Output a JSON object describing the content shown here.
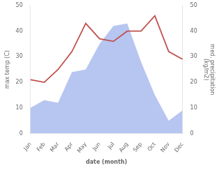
{
  "chart_data": {
    "type": "line",
    "categories": [
      "Jan",
      "Feb",
      "Mar",
      "Apr",
      "May",
      "Jun",
      "Jul",
      "Aug",
      "Sep",
      "Oct",
      "Nov",
      "Dec"
    ],
    "series": [
      {
        "type": "area",
        "color": "#aabbee",
        "axis": "y2",
        "values": [
          10,
          13,
          12,
          24,
          25,
          35,
          42,
          43,
          28,
          15,
          5,
          9
        ]
      },
      {
        "type": "line",
        "color": "#c0504d",
        "values": [
          21,
          20,
          25,
          32,
          43,
          37,
          36,
          40,
          40,
          46,
          32,
          29
        ]
      }
    ],
    "xlabel": "date (month)",
    "ylabel": "max temp (C)",
    "y2label": "med. precipitation\n(kg/m2)",
    "ylim": [
      0,
      50
    ],
    "yticks": [
      0,
      10,
      20,
      30,
      40,
      50
    ],
    "y2lim": [
      0,
      50
    ],
    "y2ticks": [
      0,
      10,
      20,
      30,
      40,
      50
    ],
    "grid": false
  }
}
